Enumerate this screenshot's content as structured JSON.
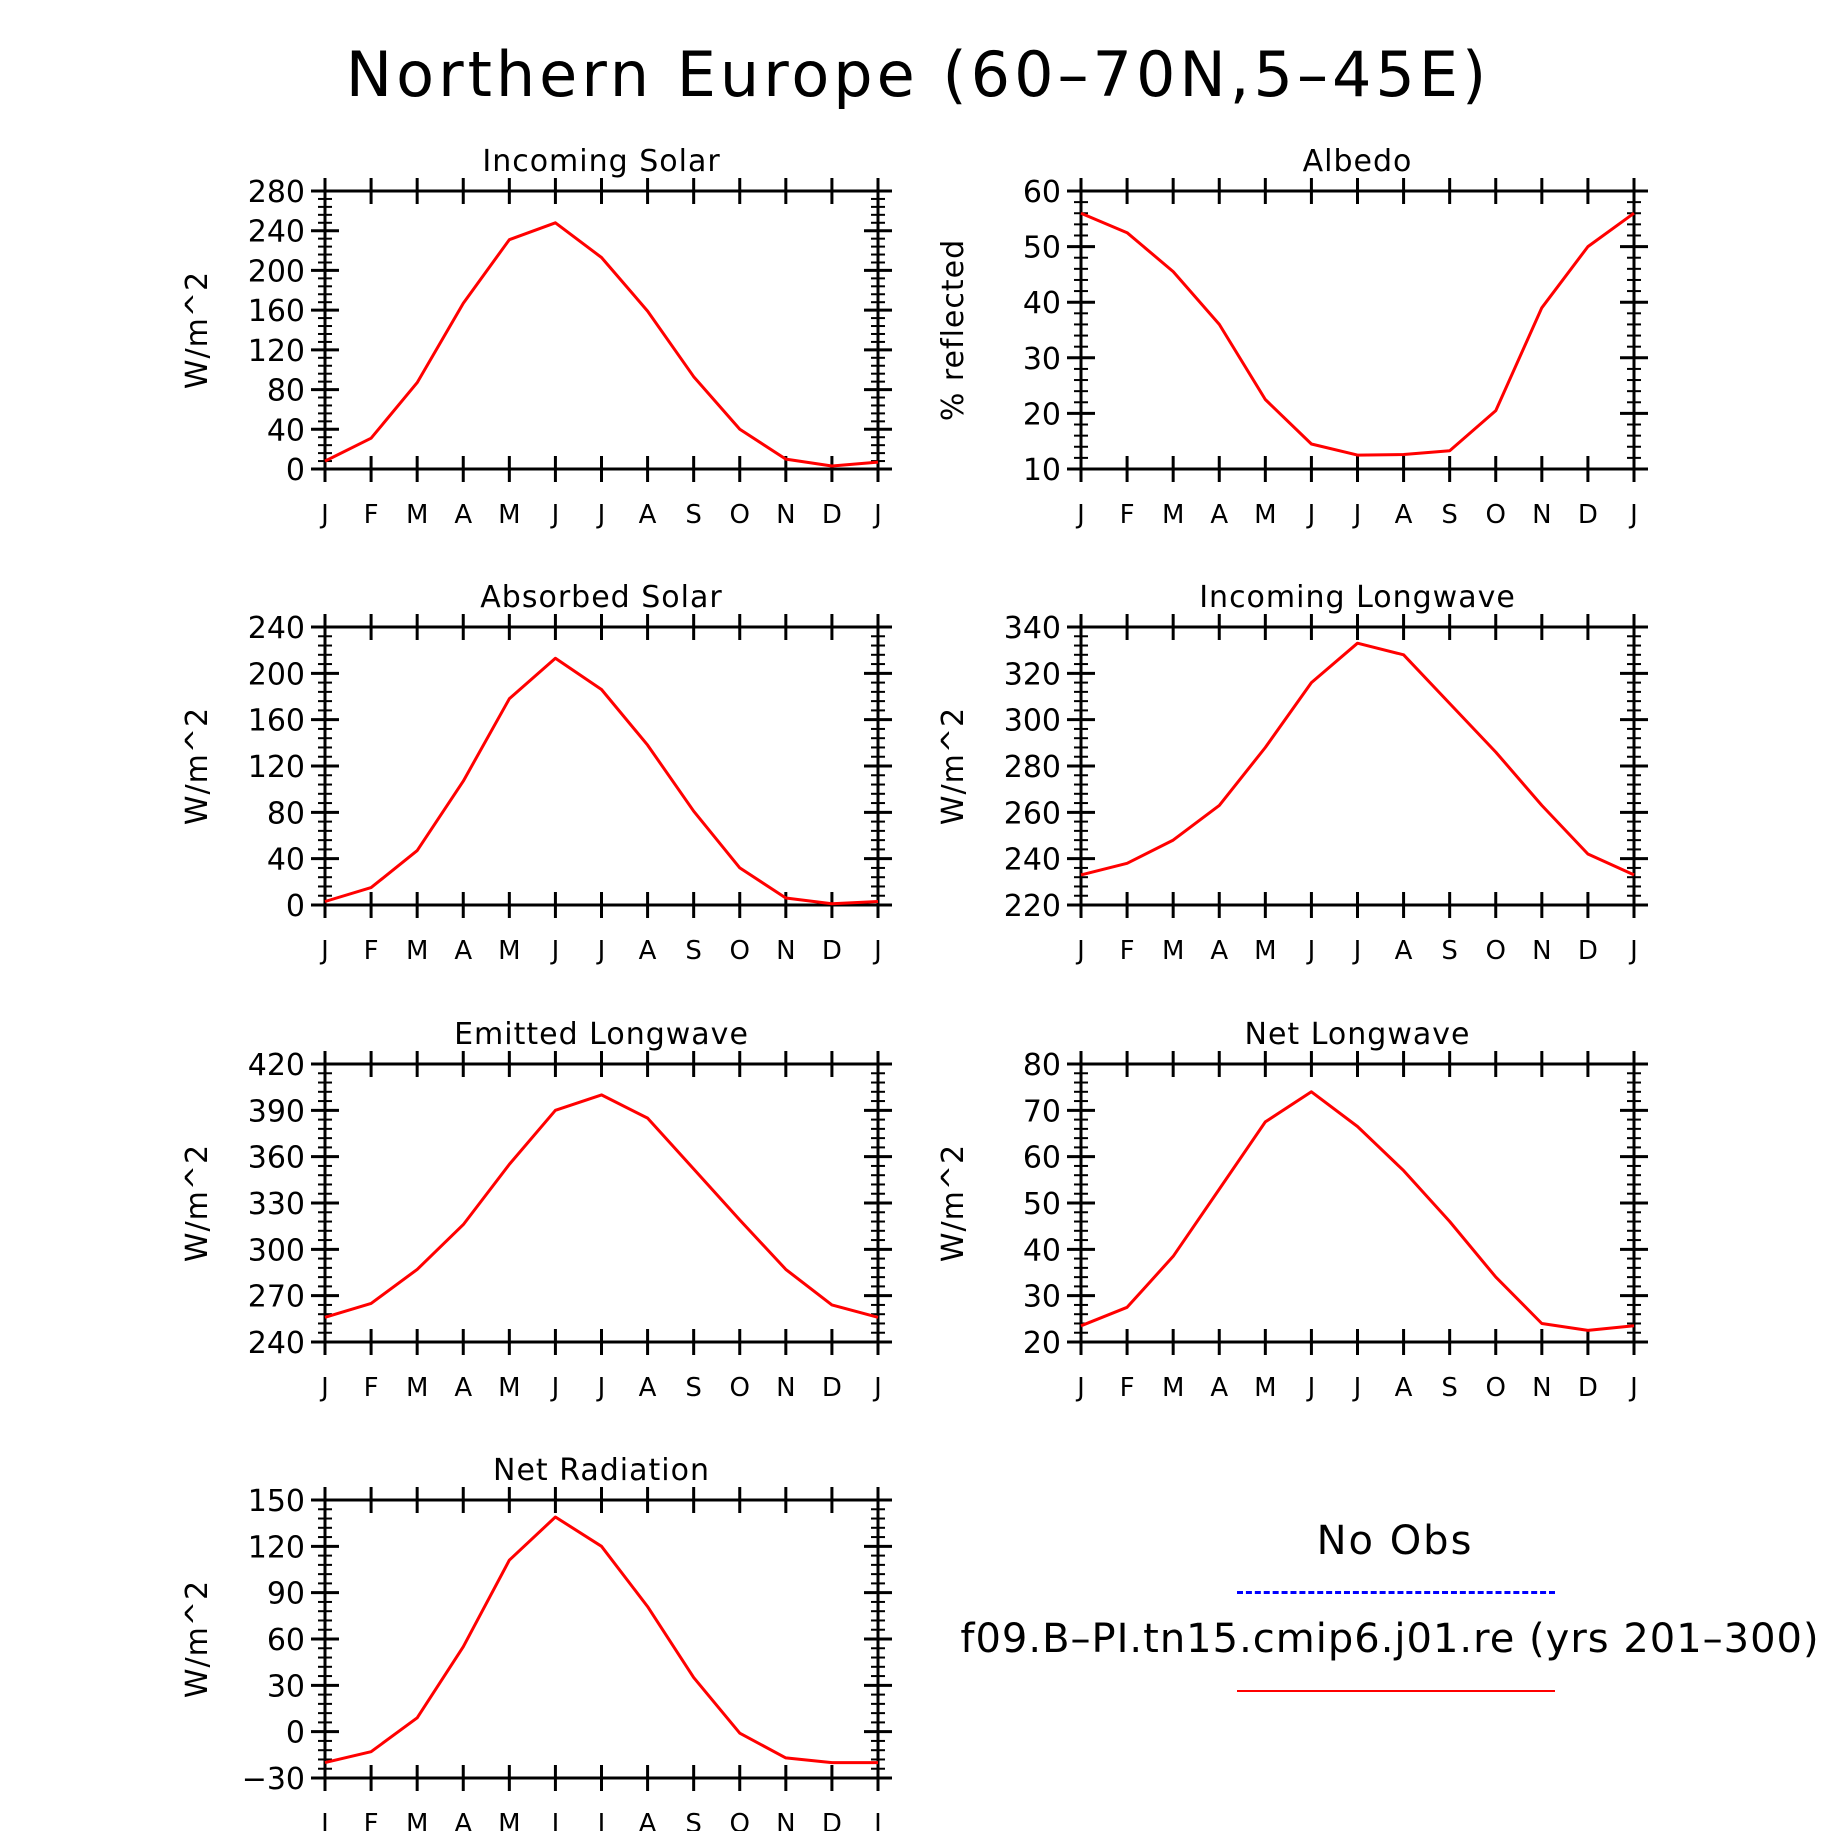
{
  "title": "Northern Europe (60–70N,5–45E)",
  "months": [
    "J",
    "F",
    "M",
    "A",
    "M",
    "J",
    "J",
    "A",
    "S",
    "O",
    "N",
    "D",
    "J"
  ],
  "colors": {
    "model": "#ff0000",
    "obs": "#0000ff",
    "axis": "#000000"
  },
  "legend": {
    "obs_label": "No Obs",
    "model_label": "f09.B–PI.tn15.cmip6.j01.re (yrs 201–300)"
  },
  "chart_data": [
    {
      "type": "line",
      "title": "Incoming Solar",
      "ylabel": "W/m^2",
      "ylim": [
        0,
        280
      ],
      "yticks": [
        0,
        40,
        80,
        120,
        160,
        200,
        240,
        280
      ],
      "x": [
        "J",
        "F",
        "M",
        "A",
        "M",
        "J",
        "J",
        "A",
        "S",
        "O",
        "N",
        "D",
        "J"
      ],
      "series": [
        {
          "values": [
            8,
            31,
            87,
            167,
            231,
            248,
            213,
            159,
            93,
            40,
            10,
            3,
            7
          ]
        }
      ]
    },
    {
      "type": "line",
      "title": "Albedo",
      "ylabel": "% reflected",
      "ylim": [
        10,
        60
      ],
      "yticks": [
        10,
        20,
        30,
        40,
        50,
        60
      ],
      "x": [
        "J",
        "F",
        "M",
        "A",
        "M",
        "J",
        "J",
        "A",
        "S",
        "O",
        "N",
        "D",
        "J"
      ],
      "series": [
        {
          "values": [
            56,
            52.5,
            45.5,
            36,
            22.5,
            14.5,
            12.5,
            12.6,
            13.3,
            20.5,
            39,
            50,
            56
          ]
        }
      ]
    },
    {
      "type": "line",
      "title": "Absorbed Solar",
      "ylabel": "W/m^2",
      "ylim": [
        0,
        240
      ],
      "yticks": [
        0,
        40,
        80,
        120,
        160,
        200,
        240
      ],
      "x": [
        "J",
        "F",
        "M",
        "A",
        "M",
        "J",
        "J",
        "A",
        "S",
        "O",
        "N",
        "D",
        "J"
      ],
      "series": [
        {
          "values": [
            3,
            15,
            47,
            107,
            178,
            213,
            186,
            138,
            81,
            32,
            6,
            1,
            3
          ]
        }
      ]
    },
    {
      "type": "line",
      "title": "Incoming Longwave",
      "ylabel": "W/m^2",
      "ylim": [
        220,
        340
      ],
      "yticks": [
        220,
        240,
        260,
        280,
        300,
        320,
        340
      ],
      "x": [
        "J",
        "F",
        "M",
        "A",
        "M",
        "J",
        "J",
        "A",
        "S",
        "O",
        "N",
        "D",
        "J"
      ],
      "series": [
        {
          "values": [
            233,
            238,
            248,
            263,
            288,
            316,
            333,
            328,
            307,
            286,
            263,
            242,
            233
          ]
        }
      ]
    },
    {
      "type": "line",
      "title": "Emitted Longwave",
      "ylabel": "W/m^2",
      "ylim": [
        240,
        420
      ],
      "yticks": [
        240,
        270,
        300,
        330,
        360,
        390,
        420
      ],
      "x": [
        "J",
        "F",
        "M",
        "A",
        "M",
        "J",
        "J",
        "A",
        "S",
        "O",
        "N",
        "D",
        "J"
      ],
      "series": [
        {
          "values": [
            256,
            265,
            287,
            316,
            355,
            390,
            400,
            385,
            352,
            319,
            287,
            264,
            256
          ]
        }
      ]
    },
    {
      "type": "line",
      "title": "Net Longwave",
      "ylabel": "W/m^2",
      "ylim": [
        20,
        80
      ],
      "yticks": [
        20,
        30,
        40,
        50,
        60,
        70,
        80
      ],
      "x": [
        "J",
        "F",
        "M",
        "A",
        "M",
        "J",
        "J",
        "A",
        "S",
        "O",
        "N",
        "D",
        "J"
      ],
      "series": [
        {
          "values": [
            23.5,
            27.5,
            38.5,
            53,
            67.5,
            74,
            66.5,
            57,
            46,
            34,
            24,
            22.5,
            23.5
          ]
        }
      ]
    },
    {
      "type": "line",
      "title": "Net Radiation",
      "ylabel": "W/m^2",
      "ylim": [
        -30,
        150
      ],
      "yticks": [
        -30,
        0,
        30,
        60,
        90,
        120,
        150
      ],
      "x": [
        "J",
        "F",
        "M",
        "A",
        "M",
        "J",
        "J",
        "A",
        "S",
        "O",
        "N",
        "D",
        "J"
      ],
      "series": [
        {
          "values": [
            -20,
            -13,
            9,
            55,
            111,
            139,
            120,
            81,
            35,
            -1,
            -17,
            -20,
            -20
          ]
        }
      ]
    }
  ]
}
